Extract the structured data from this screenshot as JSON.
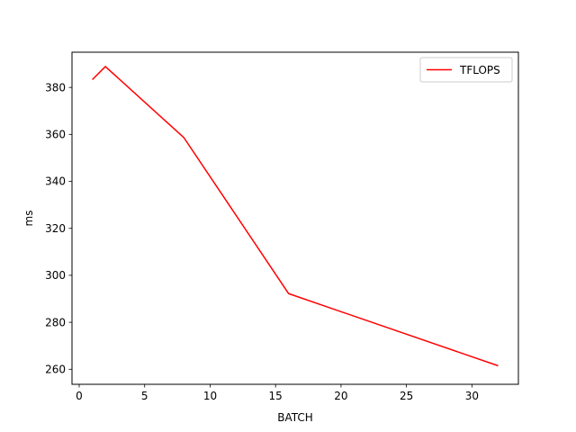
{
  "chart_data": {
    "type": "line",
    "title": "",
    "xlabel": "BATCH",
    "ylabel": "ms",
    "xlim": [
      -0.55,
      33.55
    ],
    "ylim": [
      253.6,
      395.0
    ],
    "xticks": [
      0,
      5,
      10,
      15,
      20,
      25,
      30
    ],
    "yticks": [
      260,
      280,
      300,
      320,
      340,
      360,
      380
    ],
    "grid": false,
    "legend_position": "top-right",
    "series": [
      {
        "name": "TFLOPS",
        "color": "#ff0000",
        "x": [
          1,
          2,
          8,
          16,
          32
        ],
        "y": [
          383.3,
          388.9,
          358.6,
          292.2,
          261.5
        ]
      }
    ]
  }
}
